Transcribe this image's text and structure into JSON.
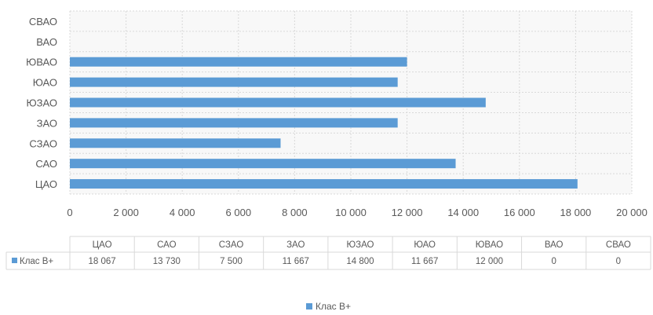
{
  "chart_data": {
    "type": "bar",
    "orientation": "horizontal",
    "categories": [
      "ЦАО",
      "САО",
      "СЗАО",
      "ЗАО",
      "ЮЗАО",
      "ЮАО",
      "ЮВАО",
      "ВАО",
      "СВАО"
    ],
    "series": [
      {
        "name": "Клас B+",
        "values": [
          18067,
          13730,
          7500,
          11667,
          14800,
          11667,
          12000,
          0,
          0
        ]
      }
    ],
    "table_values": [
      "18 067",
      "13 730",
      "7 500",
      "11 667",
      "14 800",
      "11 667",
      "12 000",
      "0",
      "0"
    ],
    "xlim": [
      0,
      20000
    ],
    "x_ticks": [
      "0",
      "2 000",
      "4 000",
      "6 000",
      "8 000",
      "10 000",
      "12 000",
      "14 000",
      "16 000",
      "18 000",
      "20 000"
    ],
    "grid": true,
    "legend_position": "bottom",
    "has_data_table": true,
    "colors": {
      "series": "#5b9bd5",
      "grid": "#d9d9d9",
      "plot_background": "#f8f8f8"
    }
  }
}
